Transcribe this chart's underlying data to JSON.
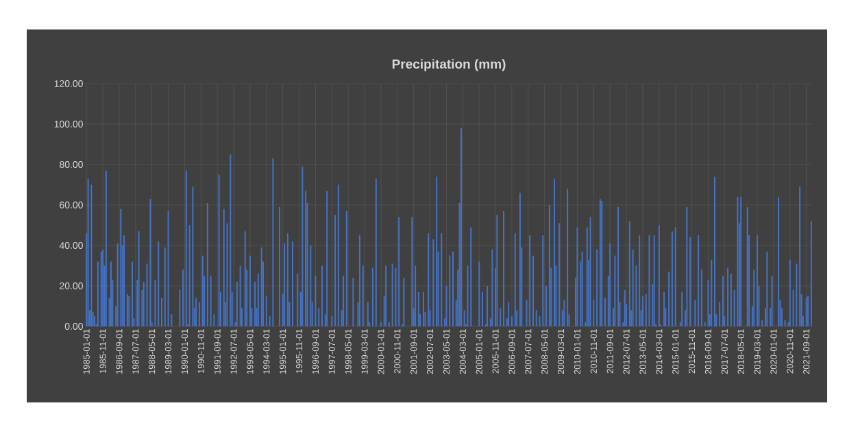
{
  "chart_data": {
    "type": "bar",
    "title": "Precipitation (mm)",
    "color": "#4472c4",
    "grid": true,
    "x": [
      "1985-01",
      "1985-02",
      "1985-03",
      "1985-04",
      "1985-05",
      "1985-06",
      "1985-07",
      "1985-08",
      "1985-10",
      "1985-11",
      "1985-12",
      "1986-01",
      "1986-03",
      "1986-04",
      "1986-05",
      "1986-07",
      "1986-08",
      "1986-10",
      "1986-11",
      "1986-12",
      "1987-02",
      "1987-03",
      "1987-05",
      "1987-06",
      "1987-08",
      "1987-09",
      "1987-11",
      "1987-12",
      "1988-02",
      "1988-04",
      "1988-05",
      "1988-07",
      "1988-09",
      "1988-11",
      "1989-01",
      "1989-03",
      "1989-05",
      "1989-10",
      "1989-12",
      "1990-02",
      "1990-03",
      "1990-04",
      "1990-06",
      "1990-07",
      "1990-08",
      "1990-10",
      "1990-12",
      "1991-01",
      "1991-03",
      "1991-05",
      "1991-07",
      "1991-10",
      "1991-11",
      "1992-01",
      "1992-02",
      "1992-03",
      "1992-05",
      "1992-06",
      "1992-08",
      "1992-09",
      "1992-11",
      "1992-12",
      "1993-02",
      "1993-03",
      "1993-05",
      "1993-06",
      "1993-08",
      "1993-09",
      "1993-10",
      "1993-12",
      "1994-01",
      "1994-03",
      "1994-05",
      "1994-07",
      "1994-11",
      "1995-01",
      "1995-02",
      "1995-04",
      "1995-05",
      "1995-07",
      "1995-08",
      "1995-10",
      "1995-12",
      "1996-01",
      "1996-03",
      "1996-04",
      "1996-06",
      "1996-07",
      "1996-09",
      "1996-11",
      "1997-01",
      "1997-03",
      "1997-04",
      "1997-07",
      "1997-09",
      "1997-11",
      "1998-01",
      "1998-02",
      "1998-04",
      "1998-06",
      "1998-08",
      "1998-11",
      "1998-12",
      "1999-02",
      "1999-05",
      "1999-06",
      "1999-08",
      "1999-10",
      "2000-01",
      "2000-03",
      "2000-04",
      "2000-06",
      "2000-08",
      "2000-10",
      "2000-12",
      "2001-02",
      "2001-03",
      "2001-05",
      "2001-08",
      "2001-09",
      "2001-10",
      "2001-12",
      "2002-01",
      "2002-03",
      "2002-04",
      "2002-06",
      "2002-07",
      "2002-09",
      "2002-11",
      "2002-12",
      "2003-02",
      "2003-04",
      "2003-05",
      "2003-07",
      "2003-09",
      "2003-11",
      "2003-12",
      "2004-01",
      "2004-02",
      "2004-04",
      "2004-05",
      "2004-06",
      "2004-08",
      "2005-01",
      "2005-03",
      "2005-05",
      "2005-06",
      "2005-08",
      "2005-09",
      "2005-11",
      "2005-12",
      "2006-02",
      "2006-04",
      "2006-06",
      "2006-07",
      "2006-09",
      "2006-11",
      "2006-12",
      "2007-02",
      "2007-03",
      "2007-06",
      "2007-08",
      "2007-10",
      "2007-12",
      "2008-02",
      "2008-04",
      "2008-06",
      "2008-08",
      "2008-09",
      "2008-11",
      "2008-12",
      "2009-02",
      "2009-04",
      "2009-05",
      "2009-07",
      "2009-08",
      "2009-12",
      "2010-01",
      "2010-03",
      "2010-04",
      "2010-06",
      "2010-07",
      "2010-08",
      "2010-09",
      "2010-11",
      "2011-01",
      "2011-03",
      "2011-04",
      "2011-06",
      "2011-08",
      "2011-09",
      "2011-11",
      "2011-12",
      "2012-02",
      "2012-03",
      "2012-05",
      "2012-06",
      "2012-07",
      "2012-09",
      "2012-10",
      "2012-11",
      "2013-01",
      "2013-03",
      "2013-04",
      "2013-05",
      "2013-07",
      "2013-09",
      "2013-11",
      "2013-12",
      "2014-01",
      "2014-03",
      "2014-04",
      "2014-06",
      "2014-07",
      "2014-09",
      "2014-11",
      "2015-01",
      "2015-04",
      "2015-05",
      "2015-07",
      "2015-08",
      "2015-10",
      "2015-12",
      "2016-01",
      "2016-03",
      "2016-05",
      "2016-07",
      "2016-09",
      "2016-10",
      "2016-11",
      "2017-01",
      "2017-02",
      "2017-04",
      "2017-06",
      "2017-07",
      "2017-09",
      "2017-11",
      "2018-01",
      "2018-03",
      "2018-04",
      "2018-05",
      "2018-07",
      "2018-09",
      "2018-10",
      "2018-12",
      "2019-01",
      "2019-03",
      "2019-04",
      "2019-06",
      "2019-08",
      "2019-09",
      "2019-11",
      "2019-12",
      "2020-02",
      "2020-04",
      "2020-05",
      "2020-06",
      "2020-08",
      "2020-10",
      "2020-11",
      "2021-01",
      "2021-03",
      "2021-05",
      "2021-06",
      "2021-07",
      "2021-09",
      "2021-10",
      "2021-12"
    ],
    "values": [
      46,
      73,
      8,
      70,
      7,
      5,
      1,
      32,
      37,
      38,
      30,
      77,
      14,
      32,
      23,
      10,
      41,
      58,
      40,
      45,
      16,
      15,
      32,
      4,
      23,
      47,
      18,
      22,
      31,
      63,
      2,
      23,
      42,
      14,
      39,
      57,
      6,
      18,
      28,
      77,
      1,
      50,
      69,
      9,
      14,
      12,
      35,
      25,
      61,
      25,
      6,
      75,
      17,
      58,
      12,
      51,
      85,
      17,
      2,
      22,
      30,
      9,
      47,
      28,
      35,
      9,
      22,
      9,
      26,
      39,
      32,
      15,
      5,
      83,
      59,
      16,
      41,
      46,
      12,
      42,
      0,
      26,
      17,
      79,
      67,
      61,
      40,
      12,
      25,
      9,
      30,
      6,
      67,
      5,
      55,
      70,
      8,
      25,
      57,
      0,
      24,
      12,
      45,
      30,
      12,
      2,
      29,
      73,
      2,
      15,
      30,
      2,
      31,
      29,
      54,
      1,
      24,
      0,
      54,
      9,
      30,
      17,
      6,
      17,
      7,
      46,
      8,
      43,
      74,
      37,
      46,
      4,
      20,
      35,
      37,
      13,
      28,
      61,
      98,
      8,
      1,
      30,
      49,
      32,
      17,
      1,
      20,
      4,
      38,
      29,
      55,
      9,
      57,
      4,
      12,
      5,
      46,
      8,
      66,
      39,
      13,
      45,
      35,
      8,
      5,
      45,
      20,
      60,
      29,
      73,
      30,
      51,
      8,
      13,
      68,
      6,
      24,
      49,
      32,
      37,
      2,
      49,
      33,
      54,
      13,
      38,
      63,
      62,
      14,
      25,
      41,
      9,
      35,
      59,
      12,
      2,
      18,
      11,
      52,
      8,
      38,
      30,
      45,
      8,
      15,
      16,
      45,
      21,
      45,
      1,
      50,
      1,
      17,
      9,
      27,
      47,
      49,
      2,
      17,
      8,
      59,
      44,
      0,
      13,
      45,
      28,
      2,
      23,
      6,
      33,
      74,
      6,
      12,
      25,
      5,
      29,
      26,
      18,
      64,
      51,
      64,
      0,
      59,
      45,
      10,
      28,
      45,
      20,
      3,
      9,
      37,
      9,
      25,
      0,
      64,
      13,
      9,
      3,
      2,
      33,
      18,
      31,
      69,
      16,
      5,
      14,
      15,
      52
    ],
    "xlim": [
      "1984-12-16",
      "2021-12-16"
    ],
    "xticks": [
      "1985-01-01",
      "1985-11-01",
      "1986-09-01",
      "1987-07-01",
      "1988-05-01",
      "1989-03-01",
      "1990-01-01",
      "1990-11-01",
      "1991-09-01",
      "1992-07-01",
      "1993-05-01",
      "1994-03-01",
      "1995-01-01",
      "1995-11-01",
      "1996-09-01",
      "1997-07-01",
      "1998-05-01",
      "1999-03-01",
      "2000-01-01",
      "2000-11-01",
      "2001-09-01",
      "2002-07-01",
      "2003-05-01",
      "2004-03-01",
      "2005-01-01",
      "2005-11-01",
      "2006-09-01",
      "2007-07-01",
      "2008-05-01",
      "2009-03-01",
      "2010-01-01",
      "2010-11-01",
      "2011-09-01",
      "2012-07-01",
      "2013-05-01",
      "2014-03-01",
      "2015-01-01",
      "2015-11-01",
      "2016-09-01",
      "2017-07-01",
      "2018-05-01",
      "2019-03-01",
      "2020-01-01",
      "2020-11-01",
      "2021-09-01"
    ],
    "ylim": [
      0,
      120
    ],
    "yticks": [
      {
        "value": 0,
        "label": "0.00"
      },
      {
        "value": 20,
        "label": "20.00"
      },
      {
        "value": 40,
        "label": "40.00"
      },
      {
        "value": 60,
        "label": "60.00"
      },
      {
        "value": 80,
        "label": "80.00"
      },
      {
        "value": 100,
        "label": "100.00"
      },
      {
        "value": 120,
        "label": "120.00"
      }
    ]
  }
}
